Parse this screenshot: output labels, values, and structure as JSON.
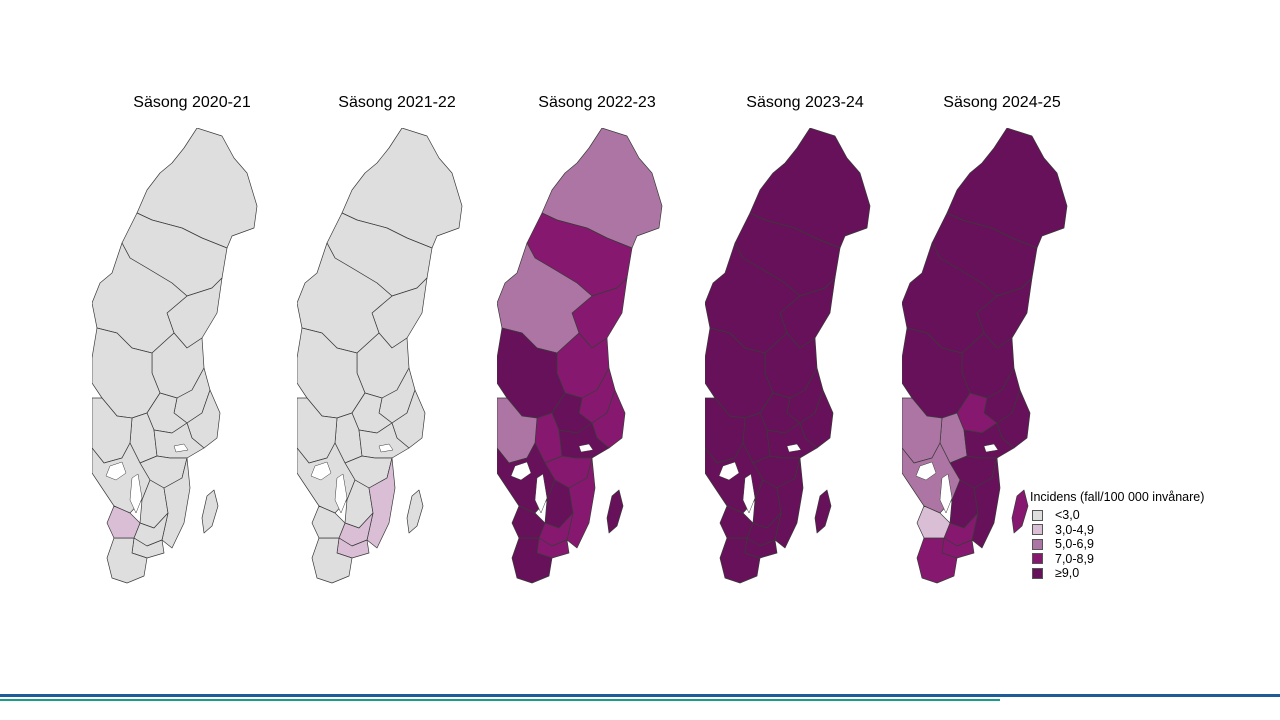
{
  "colors": {
    "lt3": "#dedede",
    "3to4_9": "#d9bed6",
    "5to6_9": "#ad75a4",
    "7to8_9": "#86196f",
    "ge9": "#66115a",
    "border": "#3a3a3a",
    "footer_blue": "#1d5c98",
    "footer_teal": "#199c8d"
  },
  "maps": [
    {
      "title": "Säsong 2020-21",
      "regions": [
        "lt3",
        "lt3",
        "lt3",
        "lt3",
        "lt3",
        "lt3",
        "lt3",
        "lt3",
        "lt3",
        "lt3",
        "lt3",
        "lt3",
        "lt3",
        "lt3",
        "lt3",
        "lt3",
        "lt3",
        "lt3",
        "lt3",
        "lt3",
        "3to4_9"
      ]
    },
    {
      "title": "Säsong 2021-22",
      "regions": [
        "lt3",
        "lt3",
        "lt3",
        "lt3",
        "lt3",
        "lt3",
        "lt3",
        "lt3",
        "lt3",
        "lt3",
        "lt3",
        "lt3",
        "lt3",
        "lt3",
        "lt3",
        "3to4_9",
        "3to4_9",
        "3to4_9",
        "lt3",
        "lt3",
        "lt3"
      ]
    },
    {
      "title": "Säsong 2022-23",
      "regions": [
        "5to6_9",
        "7to8_9",
        "7to8_9",
        "5to6_9",
        "7to8_9",
        "ge9",
        "7to8_9",
        "7to8_9",
        "ge9",
        "7to8_9",
        "5to6_9",
        "ge9",
        "7to8_9",
        "ge9",
        "ge9",
        "7to8_9",
        "7to8_9",
        "7to8_9",
        "ge9",
        "ge9",
        "ge9"
      ]
    },
    {
      "title": "Säsong 2023-24",
      "regions": [
        "ge9",
        "ge9",
        "ge9",
        "ge9",
        "ge9",
        "ge9",
        "ge9",
        "ge9",
        "ge9",
        "ge9",
        "ge9",
        "ge9",
        "ge9",
        "ge9",
        "ge9",
        "ge9",
        "ge9",
        "ge9",
        "ge9",
        "ge9",
        "ge9"
      ]
    },
    {
      "title": "Säsong 2024-25",
      "regions": [
        "ge9",
        "ge9",
        "ge9",
        "ge9",
        "ge9",
        "ge9",
        "ge9",
        "ge9",
        "7to8_9",
        "5to6_9",
        "5to6_9",
        "ge9",
        "ge9",
        "5to6_9",
        "ge9",
        "ge9",
        "7to8_9",
        "7to8_9",
        "7to8_9",
        "7to8_9",
        "3to4_9"
      ]
    }
  ],
  "legend": {
    "title": "Incidens (fall/100 000 invånare)",
    "items": [
      {
        "label": "<3,0",
        "class": "lt3"
      },
      {
        "label": "3,0-4,9",
        "class": "3to4_9"
      },
      {
        "label": "5,0-6,9",
        "class": "5to6_9"
      },
      {
        "label": "7,0-8,9",
        "class": "7to8_9"
      },
      {
        "label": "≥9,0",
        "class": "ge9"
      }
    ]
  }
}
